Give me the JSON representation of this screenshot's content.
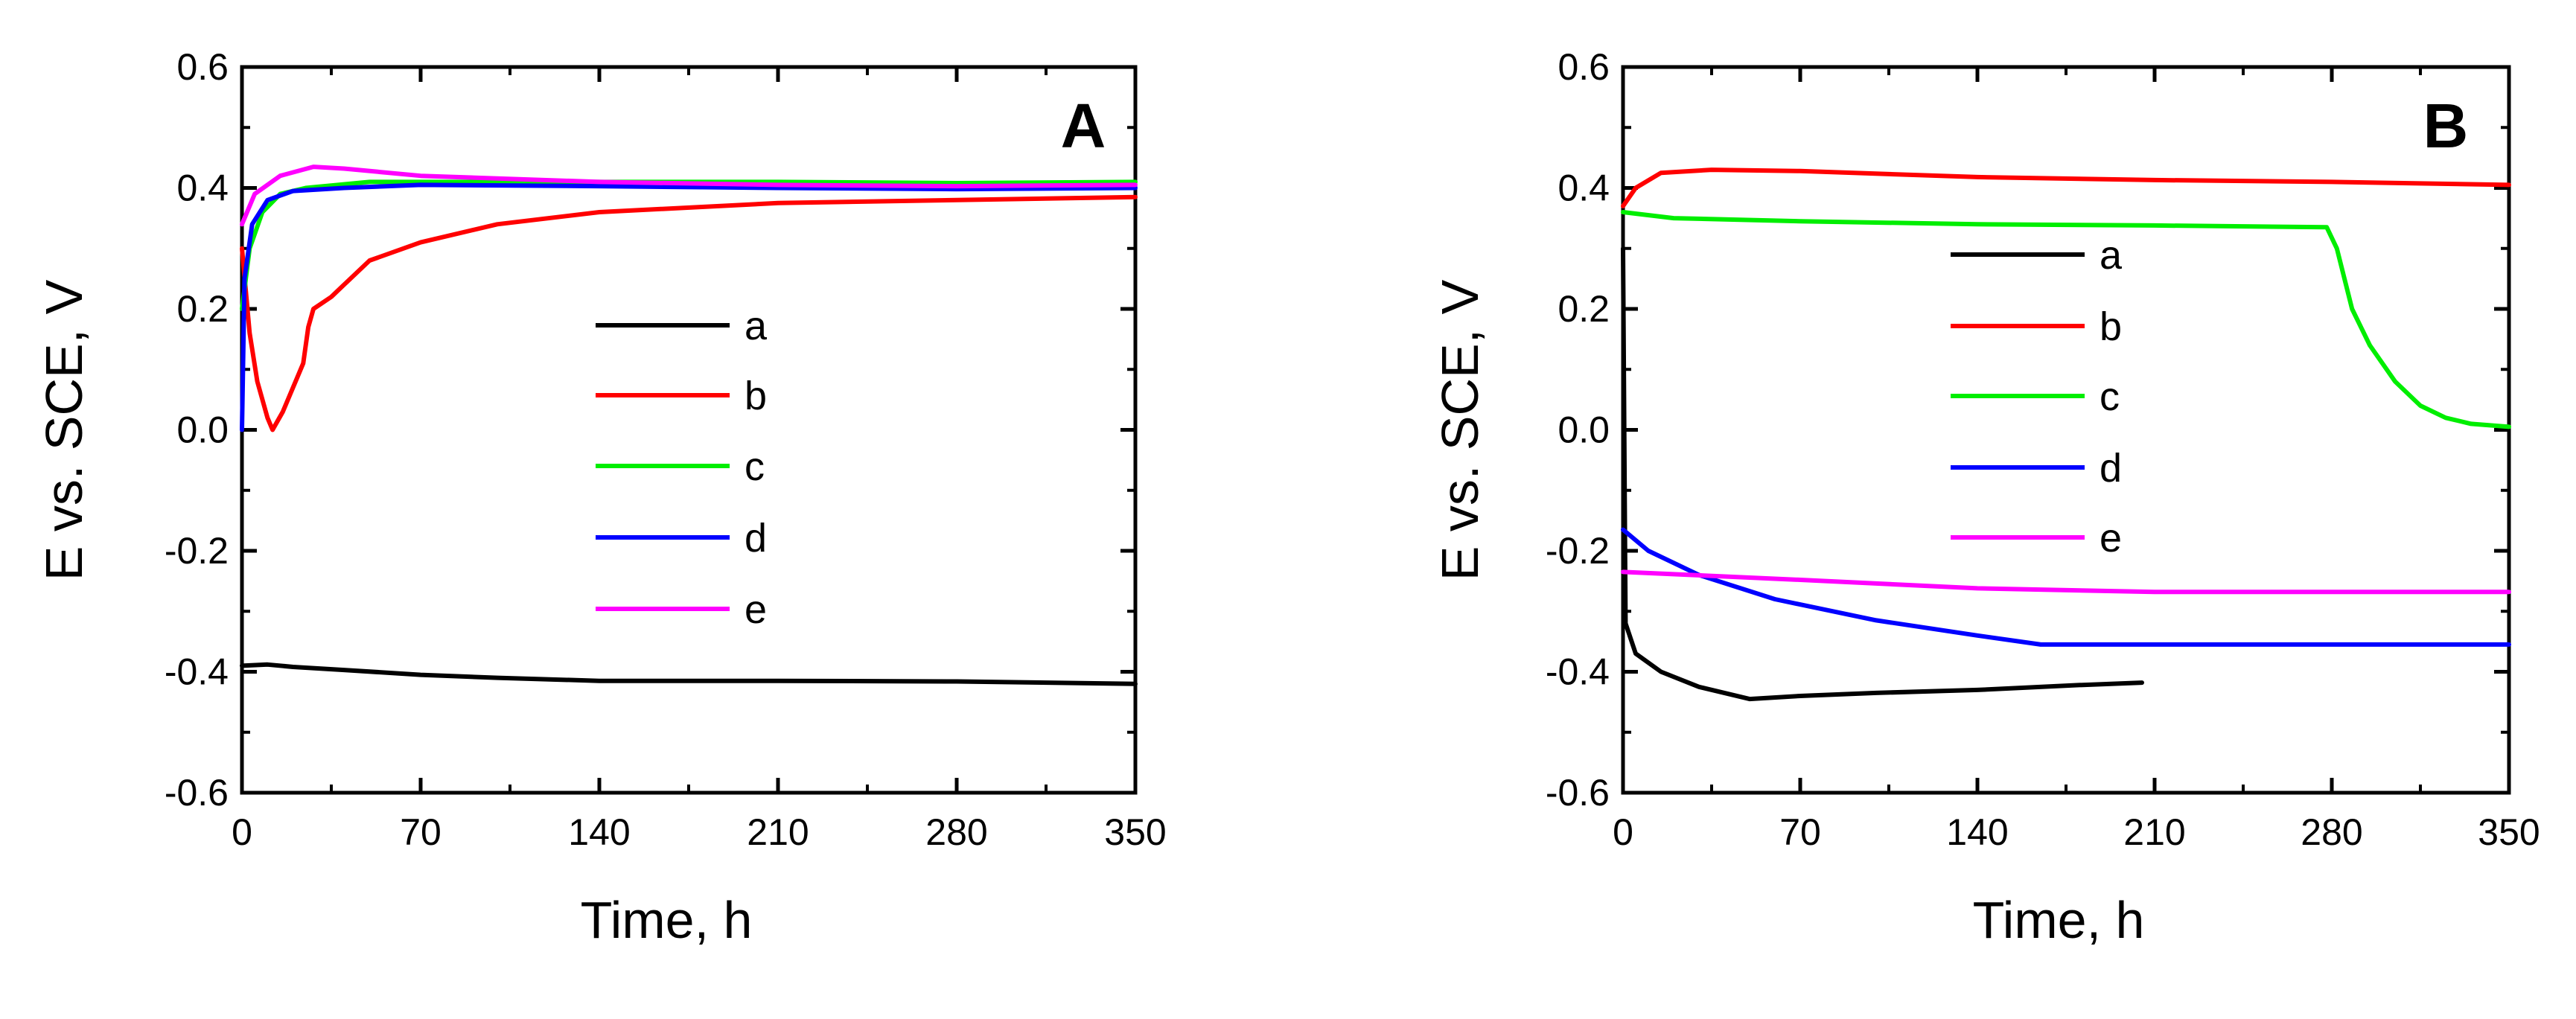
{
  "colors": {
    "a": "#000000",
    "b": "#ff0000",
    "c": "#00ee00",
    "d": "#0000ff",
    "e": "#ff00ff"
  },
  "chart_data": [
    {
      "type": "line",
      "panel": "A",
      "xlabel": "Time, h",
      "ylabel": "E vs. SCE, V",
      "xlim": [
        0,
        350
      ],
      "ylim": [
        -0.6,
        0.6
      ],
      "xticks": [
        0,
        70,
        140,
        210,
        280,
        350
      ],
      "yticks": [
        -0.6,
        -0.4,
        -0.2,
        0.0,
        0.2,
        0.4,
        0.6
      ],
      "xtick_labels": [
        "0",
        "70",
        "140",
        "210",
        "280",
        "350"
      ],
      "ytick_labels": [
        "-0.6",
        "-0.4",
        "-0.2",
        "0.0",
        "0.2",
        "0.4",
        "0.6"
      ],
      "legend_position": "center",
      "series": [
        {
          "name": "a",
          "color_key": "a",
          "points": [
            [
              0,
              -0.39
            ],
            [
              10,
              -0.388
            ],
            [
              20,
              -0.392
            ],
            [
              40,
              -0.397
            ],
            [
              70,
              -0.405
            ],
            [
              100,
              -0.41
            ],
            [
              140,
              -0.415
            ],
            [
              210,
              -0.415
            ],
            [
              280,
              -0.416
            ],
            [
              350,
              -0.42
            ]
          ]
        },
        {
          "name": "b",
          "color_key": "b",
          "points": [
            [
              0,
              0.3
            ],
            [
              3,
              0.16
            ],
            [
              6,
              0.08
            ],
            [
              10,
              0.02
            ],
            [
              12,
              0.0
            ],
            [
              16,
              0.03
            ],
            [
              20,
              0.07
            ],
            [
              24,
              0.11
            ],
            [
              26,
              0.17
            ],
            [
              28,
              0.2
            ],
            [
              35,
              0.22
            ],
            [
              40,
              0.24
            ],
            [
              50,
              0.28
            ],
            [
              70,
              0.31
            ],
            [
              100,
              0.34
            ],
            [
              140,
              0.36
            ],
            [
              210,
              0.375
            ],
            [
              280,
              0.38
            ],
            [
              350,
              0.385
            ]
          ]
        },
        {
          "name": "c",
          "color_key": "c",
          "points": [
            [
              0,
              0.2
            ],
            [
              3,
              0.3
            ],
            [
              8,
              0.36
            ],
            [
              15,
              0.39
            ],
            [
              25,
              0.4
            ],
            [
              50,
              0.41
            ],
            [
              140,
              0.41
            ],
            [
              210,
              0.41
            ],
            [
              280,
              0.408
            ],
            [
              350,
              0.41
            ]
          ]
        },
        {
          "name": "d",
          "color_key": "d",
          "points": [
            [
              0,
              0.0
            ],
            [
              1,
              0.25
            ],
            [
              4,
              0.34
            ],
            [
              10,
              0.38
            ],
            [
              20,
              0.395
            ],
            [
              40,
              0.4
            ],
            [
              70,
              0.405
            ],
            [
              140,
              0.403
            ],
            [
              210,
              0.4
            ],
            [
              280,
              0.398
            ],
            [
              350,
              0.4
            ]
          ]
        },
        {
          "name": "e",
          "color_key": "e",
          "points": [
            [
              0,
              0.34
            ],
            [
              5,
              0.39
            ],
            [
              15,
              0.42
            ],
            [
              28,
              0.435
            ],
            [
              40,
              0.432
            ],
            [
              70,
              0.42
            ],
            [
              140,
              0.41
            ],
            [
              210,
              0.405
            ],
            [
              280,
              0.403
            ],
            [
              350,
              0.405
            ]
          ]
        }
      ]
    },
    {
      "type": "line",
      "panel": "B",
      "xlabel": "Time, h",
      "ylabel": "E vs. SCE, V",
      "xlim": [
        0,
        350
      ],
      "ylim": [
        -0.6,
        0.6
      ],
      "xticks": [
        0,
        70,
        140,
        210,
        280,
        350
      ],
      "yticks": [
        -0.6,
        -0.4,
        -0.2,
        0.0,
        0.2,
        0.4,
        0.6
      ],
      "xtick_labels": [
        "0",
        "70",
        "140",
        "210",
        "280",
        "350"
      ],
      "ytick_labels": [
        "-0.6",
        "-0.4",
        "-0.2",
        "0.0",
        "0.2",
        "0.4",
        "0.6"
      ],
      "legend_position": "center",
      "series": [
        {
          "name": "a",
          "color_key": "a",
          "points": [
            [
              0,
              0.3
            ],
            [
              1,
              -0.32
            ],
            [
              5,
              -0.37
            ],
            [
              15,
              -0.4
            ],
            [
              30,
              -0.425
            ],
            [
              50,
              -0.445
            ],
            [
              70,
              -0.44
            ],
            [
              100,
              -0.435
            ],
            [
              140,
              -0.43
            ],
            [
              180,
              -0.422
            ],
            [
              205,
              -0.418
            ]
          ]
        },
        {
          "name": "b",
          "color_key": "b",
          "points": [
            [
              0,
              0.37
            ],
            [
              5,
              0.4
            ],
            [
              15,
              0.425
            ],
            [
              35,
              0.43
            ],
            [
              70,
              0.428
            ],
            [
              140,
              0.418
            ],
            [
              210,
              0.413
            ],
            [
              280,
              0.41
            ],
            [
              350,
              0.405
            ]
          ]
        },
        {
          "name": "c",
          "color_key": "c",
          "points": [
            [
              0,
              0.36
            ],
            [
              20,
              0.35
            ],
            [
              70,
              0.345
            ],
            [
              140,
              0.34
            ],
            [
              210,
              0.338
            ],
            [
              278,
              0.335
            ],
            [
              282,
              0.3
            ],
            [
              288,
              0.2
            ],
            [
              295,
              0.14
            ],
            [
              305,
              0.08
            ],
            [
              315,
              0.04
            ],
            [
              325,
              0.02
            ],
            [
              335,
              0.01
            ],
            [
              350,
              0.005
            ]
          ]
        },
        {
          "name": "d",
          "color_key": "d",
          "points": [
            [
              0,
              -0.165
            ],
            [
              10,
              -0.2
            ],
            [
              30,
              -0.24
            ],
            [
              60,
              -0.28
            ],
            [
              100,
              -0.315
            ],
            [
              140,
              -0.34
            ],
            [
              165,
              -0.355
            ],
            [
              210,
              -0.355
            ],
            [
              280,
              -0.355
            ],
            [
              350,
              -0.355
            ]
          ]
        },
        {
          "name": "e",
          "color_key": "e",
          "points": [
            [
              0,
              -0.235
            ],
            [
              70,
              -0.248
            ],
            [
              140,
              -0.262
            ],
            [
              210,
              -0.268
            ],
            [
              280,
              -0.268
            ],
            [
              350,
              -0.268
            ]
          ]
        }
      ]
    }
  ]
}
